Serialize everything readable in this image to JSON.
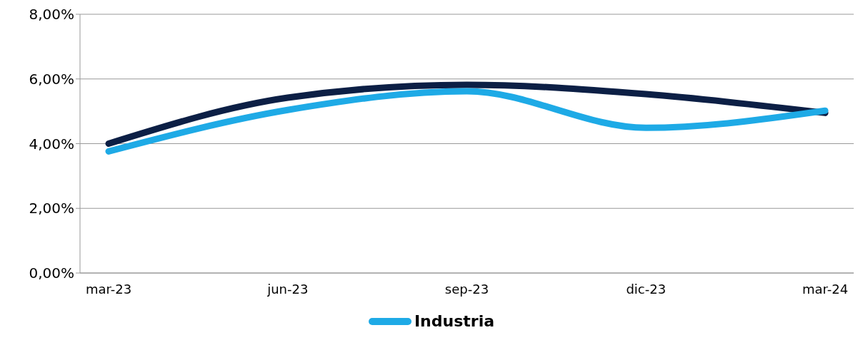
{
  "chart_data": {
    "type": "line",
    "categories": [
      "mar-23",
      "jun-23",
      "sep-23",
      "dic-23",
      "mar-24"
    ],
    "series": [
      {
        "color": "#0c1f45",
        "values": [
          4.0,
          5.42,
          5.82,
          5.53,
          4.95
        ]
      },
      {
        "name": "Industria",
        "color": "#1eaae6",
        "values": [
          3.76,
          5.04,
          5.62,
          4.49,
          5.02
        ]
      }
    ],
    "ylim": [
      0,
      8
    ],
    "yticks": [
      {
        "value": 0,
        "label": "0,00%"
      },
      {
        "value": 2,
        "label": "2,00%"
      },
      {
        "value": 4,
        "label": "4,00%"
      },
      {
        "value": 6,
        "label": "6,00%"
      },
      {
        "value": 8,
        "label": "8,00%"
      }
    ],
    "grid": "y",
    "legend": "bottom",
    "marker": "none",
    "line_style": "solid"
  }
}
